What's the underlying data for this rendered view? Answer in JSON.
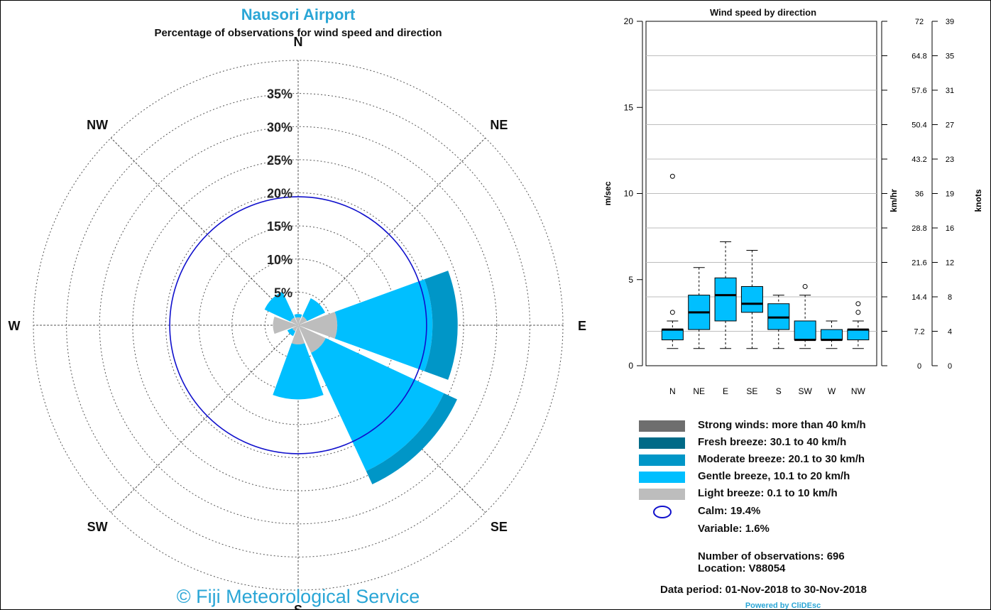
{
  "title": "Nausori Airport",
  "subtitle": "Percentage of observations for wind speed and direction",
  "copyright": "© Fiji Meteorological Service",
  "colors": {
    "strong": "#6e6e6e",
    "fresh": "#006a87",
    "moderate": "#0096c7",
    "gentle": "#00bfff",
    "light": "#bdbdbd",
    "calm": "#1010cc"
  },
  "chart_data": [
    {
      "type": "wind-rose",
      "title": "Nausori Airport",
      "subtitle": "Percentage of observations for wind speed and direction",
      "directions": [
        "N",
        "NE",
        "E",
        "SE",
        "S",
        "SW",
        "W",
        "NW"
      ],
      "radial_ticks": [
        "5%",
        "10%",
        "15%",
        "20%",
        "25%",
        "30%",
        "35%"
      ],
      "radial_max": 40,
      "calm_percent": 19.4,
      "series": [
        {
          "name": "Light breeze: 0.1 to 10 km/h",
          "values": [
            1.2,
            1.5,
            5.9,
            4.6,
            2.9,
            1.0,
            3.8,
            1.3
          ]
        },
        {
          "name": "Gentle breeze, 10.1 to 20 km/h",
          "values": [
            0.5,
            3.0,
            14.4,
            19.7,
            8.3,
            0.8,
            0.0,
            4.3
          ]
        },
        {
          "name": "Moderate breeze: 20.1 to 30 km/h",
          "values": [
            0.0,
            0.0,
            3.8,
            2.2,
            0.0,
            0.0,
            0.0,
            0.0
          ]
        },
        {
          "name": "Fresh breeze: 30.1 to 40 km/h",
          "values": [
            0,
            0,
            0,
            0,
            0,
            0,
            0,
            0
          ]
        },
        {
          "name": "Strong winds: more than 40 km/h",
          "values": [
            0,
            0,
            0,
            0,
            0,
            0,
            0,
            0
          ]
        }
      ]
    },
    {
      "type": "box",
      "title": "Wind speed by direction",
      "categories": [
        "N",
        "NE",
        "E",
        "SE",
        "S",
        "SW",
        "W",
        "NW"
      ],
      "ylabel": "m/sec",
      "ylim": [
        0,
        20
      ],
      "yticks": [
        0,
        5,
        10,
        15,
        20
      ],
      "secondary_axes": [
        {
          "label": "km/hr",
          "ticks": [
            "0",
            "7.2",
            "14.4",
            "21.6",
            "28.8",
            "36",
            "43.2",
            "50.4",
            "57.6",
            "64.8",
            "72"
          ]
        },
        {
          "label": "knots",
          "ticks": [
            "0",
            "4",
            "8",
            "12",
            "16",
            "19",
            "23",
            "27",
            "31",
            "35",
            "39"
          ]
        }
      ],
      "boxes": [
        {
          "min": 1.0,
          "q1": 1.5,
          "median": 2.1,
          "q3": 2.1,
          "max": 2.6,
          "outliers": [
            3.1,
            11.0
          ]
        },
        {
          "min": 1.0,
          "q1": 2.1,
          "median": 3.1,
          "q3": 4.1,
          "max": 5.7,
          "outliers": []
        },
        {
          "min": 1.0,
          "q1": 2.6,
          "median": 4.1,
          "q3": 5.1,
          "max": 7.2,
          "outliers": []
        },
        {
          "min": 1.0,
          "q1": 3.1,
          "median": 3.6,
          "q3": 4.6,
          "max": 6.7,
          "outliers": []
        },
        {
          "min": 1.0,
          "q1": 2.1,
          "median": 2.8,
          "q3": 3.6,
          "max": 4.1,
          "outliers": []
        },
        {
          "min": 1.0,
          "q1": 1.5,
          "median": 1.5,
          "q3": 2.6,
          "max": 4.1,
          "outliers": [
            4.6
          ]
        },
        {
          "min": 1.0,
          "q1": 1.5,
          "median": 1.5,
          "q3": 2.1,
          "max": 2.6,
          "outliers": []
        },
        {
          "min": 1.0,
          "q1": 1.5,
          "median": 2.1,
          "q3": 2.1,
          "max": 2.6,
          "outliers": [
            3.1,
            3.6
          ]
        }
      ]
    }
  ],
  "legend": {
    "strong": "Strong winds: more than 40 km/h",
    "fresh": "Fresh breeze: 30.1 to 40 km/h",
    "moderate": "Moderate breeze: 20.1 to 30 km/h",
    "gentle": "Gentle breeze, 10.1 to 20 km/h",
    "light": "Light breeze: 0.1 to 10 km/h",
    "calm": "Calm: 19.4%",
    "variable": "Variable: 1.6%"
  },
  "observations": "Number of observations:  696",
  "location": "Location:  V88054",
  "data_period": "Data period: 01-Nov-2018 to 30-Nov-2018",
  "powered_by": "Powered by CliDEsc"
}
